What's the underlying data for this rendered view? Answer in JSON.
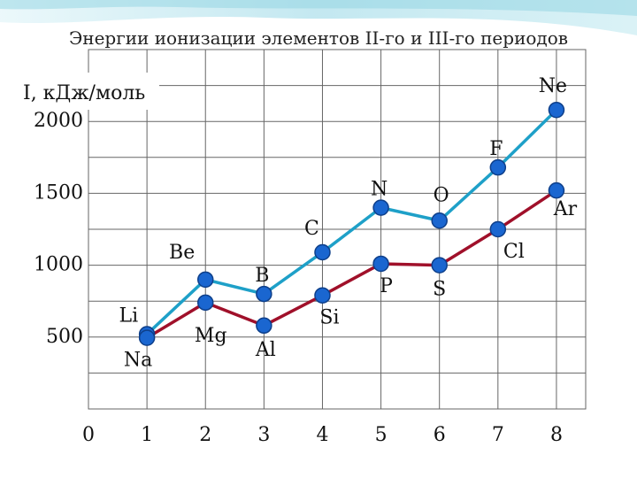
{
  "chart_data": {
    "type": "line",
    "title": "Энергии ионизации элементов II-го и III-го периодов",
    "ylabel": "I, кДж/моль",
    "xlabel": "",
    "x": [
      1,
      2,
      3,
      4,
      5,
      6,
      7,
      8
    ],
    "xticks": [
      "0",
      "1",
      "2",
      "3",
      "4",
      "5",
      "6",
      "7",
      "8"
    ],
    "yticks": [
      "500",
      "1000",
      "1500",
      "2000"
    ],
    "ylim": [
      0,
      2500
    ],
    "xlim": [
      0,
      8.5
    ],
    "grid": true,
    "series": [
      {
        "labels": [
          "Li",
          "Be",
          "B",
          "C",
          "N",
          "O",
          "F",
          "Ne"
        ],
        "values": [
          520,
          900,
          800,
          1090,
          1400,
          1310,
          1680,
          2080
        ],
        "color": "#1ea0c8"
      },
      {
        "labels": [
          "Na",
          "Mg",
          "Al",
          "Si",
          "P",
          "S",
          "Cl",
          "Ar"
        ],
        "values": [
          495,
          740,
          580,
          790,
          1010,
          1000,
          1250,
          1520
        ],
        "color": "#a0102a"
      }
    ]
  },
  "colors": {
    "marker_fill": "#1a66d0",
    "marker_stroke": "#0e3f8a",
    "grid": "#666666",
    "background_accent": "#bde6ee"
  }
}
